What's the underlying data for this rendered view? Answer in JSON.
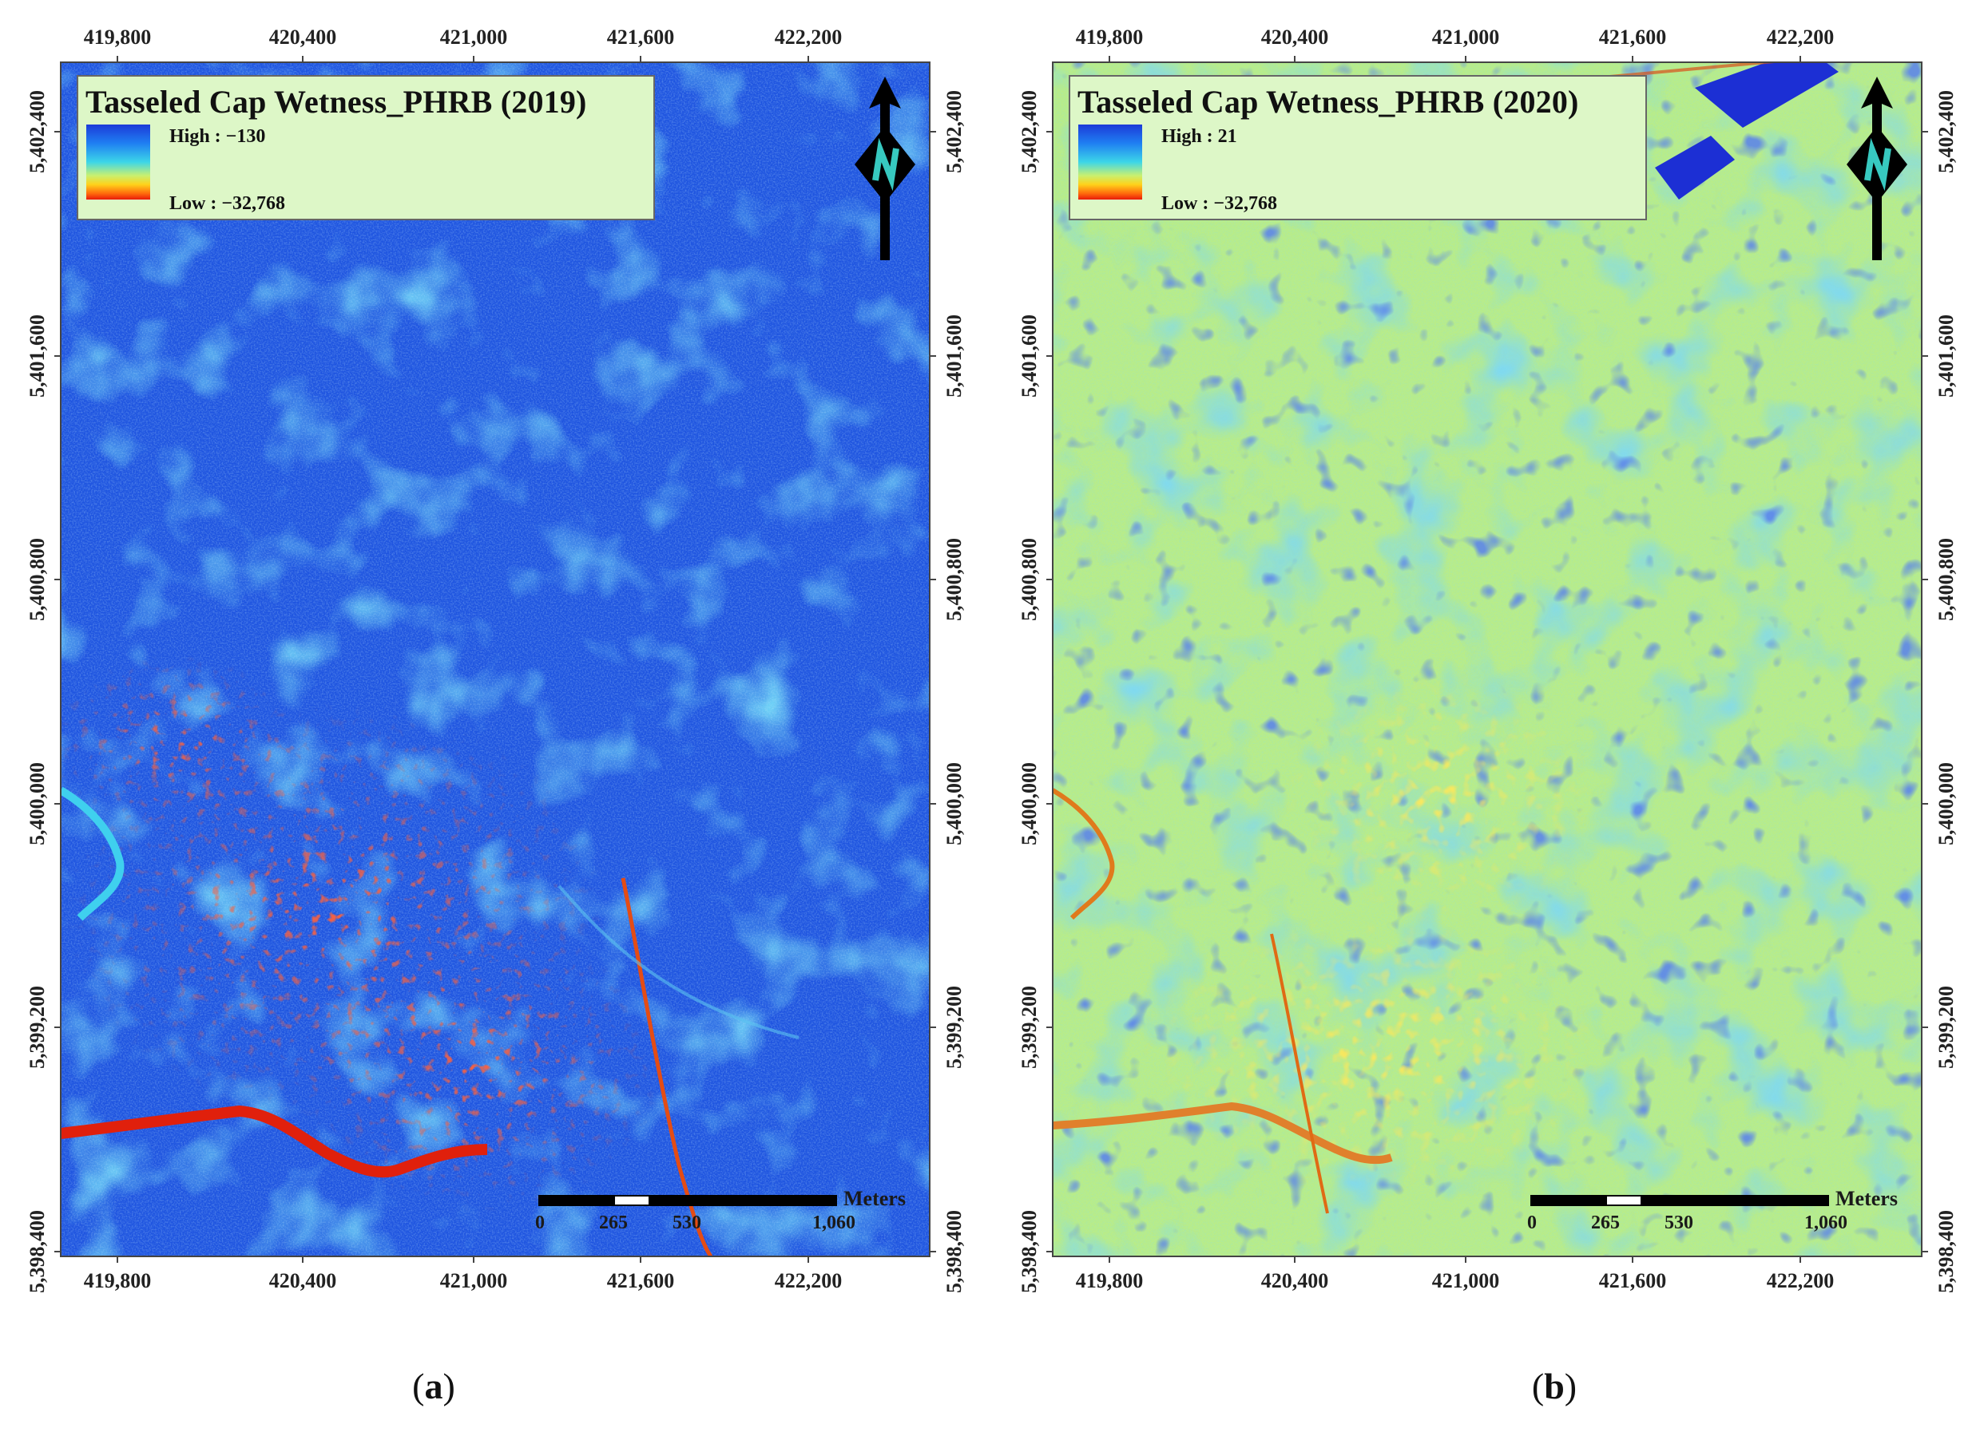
{
  "panels": [
    {
      "id": "a",
      "legend_title": "Tasseled Cap Wetness_PHRB (2019)",
      "legend_high": "High : −130",
      "legend_low": "Low : −32,768",
      "caption_open": "(",
      "caption_letter": "a",
      "caption_close": ")",
      "color_scheme": "blue-dominant",
      "colors": {
        "base": "#1f55e0",
        "mid": "#3aa3ef",
        "dry": "#e42a12"
      }
    },
    {
      "id": "b",
      "legend_title": "Tasseled Cap Wetness_PHRB (2020)",
      "legend_high": "High : 21",
      "legend_low": "Low : −32,768",
      "caption_open": "(",
      "caption_letter": "b",
      "caption_close": ")",
      "color_scheme": "yellow-green-dominant",
      "colors": {
        "base": "#b9ec88",
        "mid": "#44c6ea",
        "dry": "#f2a41e"
      }
    }
  ],
  "x_ticks": [
    "419,800",
    "420,400",
    "421,000",
    "421,600",
    "422,200"
  ],
  "y_ticks": [
    "5,402,400",
    "5,401,600",
    "5,400,800",
    "5,400,000",
    "5,399,200",
    "5,398,400"
  ],
  "scale": {
    "unit": "Meters",
    "labels": [
      "0",
      "265",
      "530",
      "1,060"
    ]
  },
  "north_arrow": {
    "icon": "north-arrow-icon",
    "letter": "N"
  },
  "colors": {
    "legend_bg": "#ddf7c7",
    "frame": "#444444"
  }
}
